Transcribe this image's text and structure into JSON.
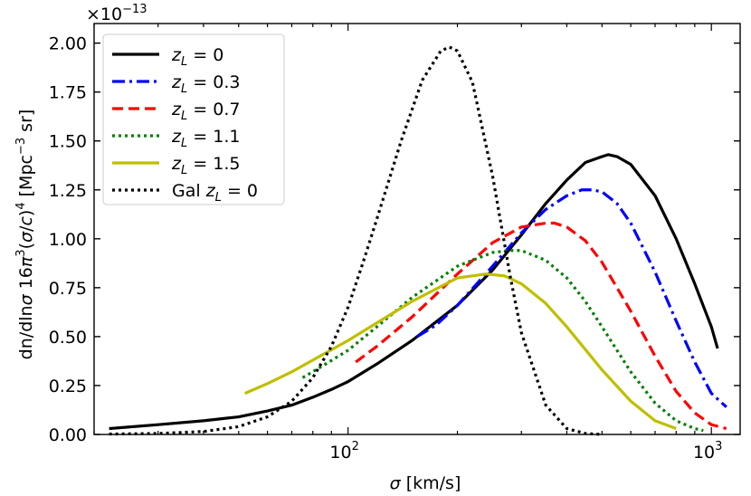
{
  "chart_data": {
    "type": "line",
    "title": "",
    "xlabel": "σ [km/s]",
    "xlabel_symbol": "σ",
    "xlabel_unit": "[km/s]",
    "ylabel": "dn/dlnσ 16π³(σ/c)⁴ [Mpc⁻³ sr]",
    "y_scale_note": "×10⁻¹³",
    "y_multiplier_base": "×10",
    "y_multiplier_exp": "−13",
    "xscale": "log",
    "xlim": [
      20,
      1200
    ],
    "ylim": [
      0,
      2.1
    ],
    "yticks": [
      "0.00",
      "0.25",
      "0.50",
      "0.75",
      "1.00",
      "1.25",
      "1.50",
      "1.75",
      "2.00"
    ],
    "xticks": [
      {
        "value": 100,
        "base": "10",
        "exp": "2"
      },
      {
        "value": 1000,
        "base": "10",
        "exp": "3"
      }
    ],
    "legend_position": "top-left",
    "series": [
      {
        "name": "z_L = 0",
        "label_var": "z",
        "label_sub": "L",
        "label_rest": " = 0",
        "color": "#000000",
        "style": "solid",
        "x": [
          22,
          30,
          40,
          50,
          60,
          70,
          80,
          90,
          100,
          120,
          150,
          200,
          250,
          300,
          350,
          400,
          450,
          500,
          520,
          550,
          600,
          700,
          800,
          900,
          1000,
          1040
        ],
        "values": [
          0.03,
          0.05,
          0.07,
          0.09,
          0.12,
          0.15,
          0.19,
          0.23,
          0.27,
          0.36,
          0.48,
          0.66,
          0.84,
          1.02,
          1.18,
          1.3,
          1.39,
          1.42,
          1.43,
          1.42,
          1.38,
          1.22,
          1.0,
          0.77,
          0.55,
          0.44
        ]
      },
      {
        "name": "z_L = 0.3",
        "label_var": "z",
        "label_sub": "L",
        "label_rest": " = 0.3",
        "color": "#0000ff",
        "style": "dashdot",
        "x": [
          155,
          175,
          200,
          250,
          300,
          350,
          400,
          440,
          470,
          500,
          550,
          600,
          700,
          800,
          900,
          1000,
          1100
        ],
        "values": [
          0.5,
          0.56,
          0.66,
          0.86,
          1.03,
          1.15,
          1.22,
          1.25,
          1.25,
          1.24,
          1.18,
          1.08,
          0.83,
          0.58,
          0.37,
          0.21,
          0.14
        ]
      },
      {
        "name": "z_L = 0.7",
        "label_var": "z",
        "label_sub": "L",
        "label_rest": " = 0.7",
        "color": "#ff0000",
        "style": "dashed",
        "x": [
          105,
          120,
          150,
          200,
          250,
          300,
          350,
          370,
          400,
          450,
          500,
          600,
          700,
          800,
          900,
          1000,
          1100
        ],
        "values": [
          0.37,
          0.45,
          0.6,
          0.82,
          0.98,
          1.06,
          1.08,
          1.08,
          1.06,
          0.99,
          0.88,
          0.63,
          0.4,
          0.22,
          0.11,
          0.05,
          0.03
        ]
      },
      {
        "name": "z_L = 1.1",
        "label_var": "z",
        "label_sub": "L",
        "label_rest": " = 1.1",
        "color": "#008000",
        "style": "dotted",
        "x": [
          75,
          85,
          100,
          120,
          150,
          200,
          250,
          280,
          300,
          350,
          400,
          450,
          500,
          600,
          700,
          800,
          900,
          950
        ],
        "values": [
          0.29,
          0.35,
          0.43,
          0.55,
          0.7,
          0.86,
          0.93,
          0.94,
          0.94,
          0.89,
          0.8,
          0.68,
          0.55,
          0.32,
          0.16,
          0.07,
          0.03,
          0.02
        ]
      },
      {
        "name": "z_L = 1.5",
        "label_var": "z",
        "label_sub": "L",
        "label_rest": " = 1.5",
        "color": "#bfbf00",
        "style": "solid",
        "x": [
          52,
          60,
          70,
          80,
          100,
          120,
          150,
          200,
          240,
          270,
          300,
          350,
          400,
          500,
          600,
          700,
          800
        ],
        "values": [
          0.21,
          0.26,
          0.32,
          0.38,
          0.48,
          0.57,
          0.68,
          0.8,
          0.82,
          0.81,
          0.77,
          0.67,
          0.55,
          0.33,
          0.17,
          0.07,
          0.03
        ]
      },
      {
        "name": "Gal z_L = 0",
        "label_prefix": "Gal ",
        "label_var": "z",
        "label_sub": "L",
        "label_rest": " = 0",
        "color": "#000000",
        "style": "dotted",
        "x": [
          22,
          30,
          40,
          50,
          60,
          70,
          80,
          90,
          100,
          110,
          120,
          140,
          160,
          180,
          190,
          200,
          220,
          250,
          280,
          300,
          350,
          400,
          450,
          500
        ],
        "values": [
          0.002,
          0.005,
          0.015,
          0.04,
          0.09,
          0.17,
          0.29,
          0.45,
          0.65,
          0.88,
          1.1,
          1.5,
          1.81,
          1.96,
          1.98,
          1.96,
          1.8,
          1.32,
          0.8,
          0.52,
          0.15,
          0.03,
          0.005,
          0.0
        ]
      }
    ]
  }
}
